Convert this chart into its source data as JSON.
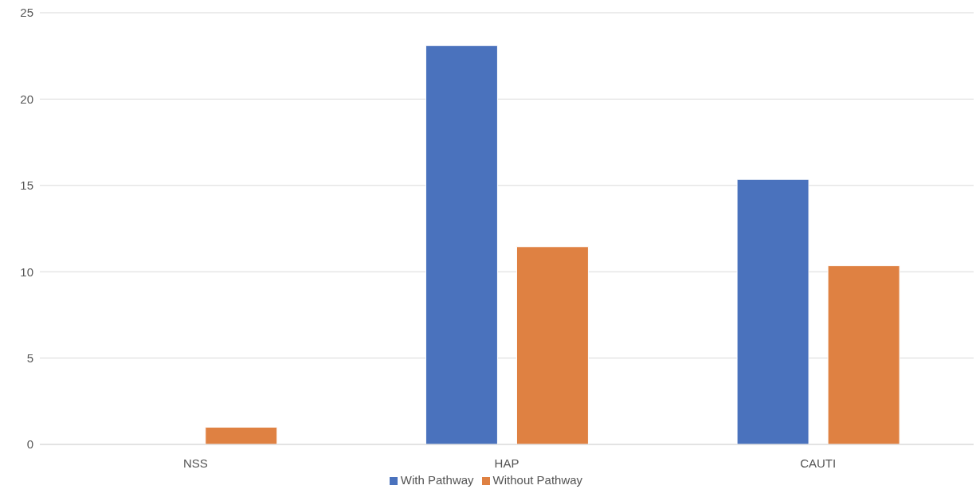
{
  "chart_data": {
    "type": "bar",
    "categories": [
      "NSS",
      "HAP",
      "CAUTI"
    ],
    "series": [
      {
        "name": "With Pathway",
        "color": "#4a72bd",
        "values": [
          0,
          23.1,
          15.35
        ]
      },
      {
        "name": "Without Pathway",
        "color": "#df8142",
        "values": [
          1.0,
          11.45,
          10.35
        ]
      }
    ],
    "ylim": [
      0,
      25
    ],
    "yticks": [
      0,
      5,
      10,
      15,
      20,
      25
    ],
    "grid": "y",
    "legend": "bottom"
  }
}
